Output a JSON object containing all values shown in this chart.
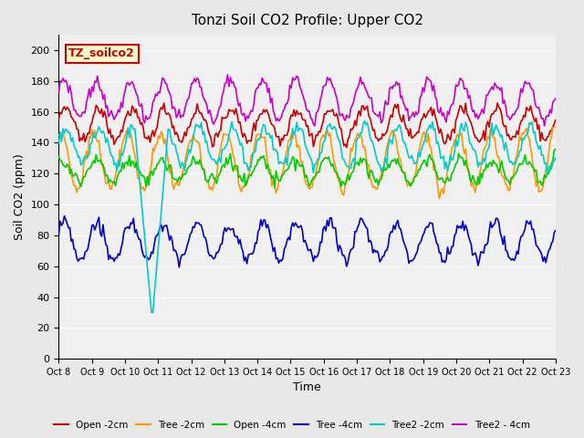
{
  "title": "Tonzi Soil CO2 Profile: Upper CO2",
  "xlabel": "Time",
  "ylabel": "Soil CO2 (ppm)",
  "ylim": [
    0,
    210
  ],
  "yticks": [
    0,
    20,
    40,
    60,
    80,
    100,
    120,
    140,
    160,
    180,
    200
  ],
  "bg_color": "#e8e8e8",
  "plot_bg_color": "#f0f0f0",
  "grid_color": "#ffffff",
  "label_box_text": "TZ_soilco2",
  "label_box_bg": "#ffffcc",
  "label_box_edge": "#cc0000",
  "series": [
    {
      "name": "Open -2cm",
      "color": "#cc0000",
      "lw": 1.2
    },
    {
      "name": "Tree -2cm",
      "color": "#ff9900",
      "lw": 1.2
    },
    {
      "name": "Open -4cm",
      "color": "#00cc00",
      "lw": 1.2
    },
    {
      "name": "Tree -4cm",
      "color": "#0000cc",
      "lw": 1.2
    },
    {
      "name": "Tree2 -2cm",
      "color": "#00cccc",
      "lw": 1.2
    },
    {
      "name": "Tree2 - 4cm",
      "color": "#cc00cc",
      "lw": 1.2
    }
  ],
  "n_points": 360,
  "x_tick_labels": [
    "Oct 8",
    "Oct 9",
    "Oct 10",
    "Oct 11",
    "Oct 12",
    "Oct 13",
    "Oct 14",
    "Oct 15",
    "Oct 16",
    "Oct 17",
    "Oct 18",
    "Oct 19",
    "Oct 20",
    "Oct 21",
    "Oct 22",
    "Oct 23"
  ],
  "n_days": 15
}
